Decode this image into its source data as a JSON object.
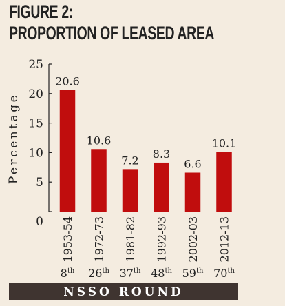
{
  "figure": {
    "label": "FIGURE 2:",
    "title": "PROPORTION OF LEASED AREA"
  },
  "chart_data": {
    "type": "bar",
    "ylabel": "Percentage",
    "xlabel": "NSSO ROUND",
    "ylim": [
      0,
      25
    ],
    "yticks": [
      0,
      5,
      10,
      15,
      20,
      25
    ],
    "categories": [
      "1953-54",
      "1972-73",
      "1981-82",
      "1992-93",
      "2002-03",
      "2012-13"
    ],
    "rounds": [
      {
        "num": "8",
        "suffix": "th"
      },
      {
        "num": "26",
        "suffix": "th"
      },
      {
        "num": "37",
        "suffix": "th"
      },
      {
        "num": "48",
        "suffix": "th"
      },
      {
        "num": "59",
        "suffix": "th"
      },
      {
        "num": "70",
        "suffix": "th"
      }
    ],
    "values": [
      20.6,
      10.6,
      7.2,
      8.3,
      6.6,
      10.1
    ],
    "value_labels": [
      "20.6",
      "10.6",
      "7.2",
      "8.3",
      "6.6",
      "10.1"
    ],
    "bar_color": "#c00d0d",
    "grid": false
  }
}
